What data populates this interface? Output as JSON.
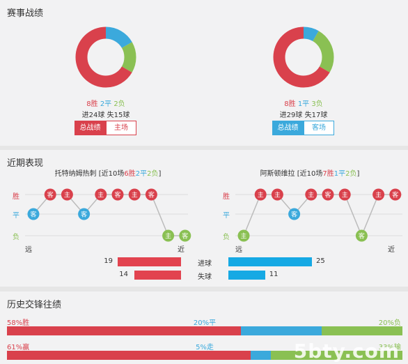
{
  "section1": {
    "title": "赛事战绩",
    "left": {
      "record": {
        "win": "8胜",
        "draw": "2平",
        "loss": "2负"
      },
      "goals": {
        "scored": "进24球",
        "conceded": "失15球"
      },
      "buttons": {
        "overall": "总战绩",
        "venue": "主场"
      },
      "donut": {
        "win": 8,
        "draw": 2,
        "loss": 2
      }
    },
    "right": {
      "record": {
        "win": "8胜",
        "draw": "1平",
        "loss": "3负"
      },
      "goals": {
        "scored": "进29球",
        "conceded": "失17球"
      },
      "buttons": {
        "overall": "总战绩",
        "venue": "客场"
      },
      "donut": {
        "win": 8,
        "draw": 1,
        "loss": 3
      }
    }
  },
  "section2": {
    "title": "近期表现",
    "row_labels": {
      "win": "胜",
      "draw": "平",
      "loss": "负"
    },
    "axis": {
      "far": "远",
      "near": "近"
    },
    "left": {
      "team": "托特纳姆热刺",
      "summary": {
        "prefix": "[近10场",
        "win": "6胜",
        "draw": "2平",
        "loss": "2负",
        "suffix": "]"
      },
      "matches": [
        {
          "result": "draw",
          "venue": "客"
        },
        {
          "result": "win",
          "venue": "客"
        },
        {
          "result": "win",
          "venue": "主"
        },
        {
          "result": "draw",
          "venue": "客"
        },
        {
          "result": "win",
          "venue": "主"
        },
        {
          "result": "win",
          "venue": "客"
        },
        {
          "result": "win",
          "venue": "主"
        },
        {
          "result": "win",
          "venue": "客"
        },
        {
          "result": "loss",
          "venue": "主"
        },
        {
          "result": "loss",
          "venue": "客"
        }
      ]
    },
    "right": {
      "team": "阿斯顿维拉",
      "summary": {
        "prefix": "[近10场",
        "win": "7胜",
        "draw": "1平",
        "loss": "2负",
        "suffix": "]"
      },
      "matches": [
        {
          "result": "loss",
          "venue": "主"
        },
        {
          "result": "win",
          "venue": "主"
        },
        {
          "result": "win",
          "venue": "主"
        },
        {
          "result": "draw",
          "venue": "客"
        },
        {
          "result": "win",
          "venue": "主"
        },
        {
          "result": "win",
          "venue": "客"
        },
        {
          "result": "win",
          "venue": "主"
        },
        {
          "result": "loss",
          "venue": "客"
        },
        {
          "result": "win",
          "venue": "主"
        },
        {
          "result": "win",
          "venue": "客"
        }
      ]
    },
    "stats": {
      "scored": {
        "label": "进球",
        "left": 19,
        "right": 25
      },
      "conceded": {
        "label": "失球",
        "left": 14,
        "right": 11
      }
    }
  },
  "section3": {
    "title": "历史交锋往绩",
    "row1": {
      "left_label": "58%胜",
      "mid_label": "20%平",
      "right_label": "20%负",
      "win": 58,
      "draw": 20,
      "loss": 20
    },
    "row2": {
      "left_label": "61%赢",
      "mid_label": "5%走",
      "right_label": "33%输",
      "win": 61,
      "draw": 5,
      "loss": 33
    }
  },
  "watermark": "5bty.com",
  "colors": {
    "win": "#d9414c",
    "draw": "#3ba9dc",
    "loss": "#8ac053",
    "line": "#bbbbbb"
  }
}
